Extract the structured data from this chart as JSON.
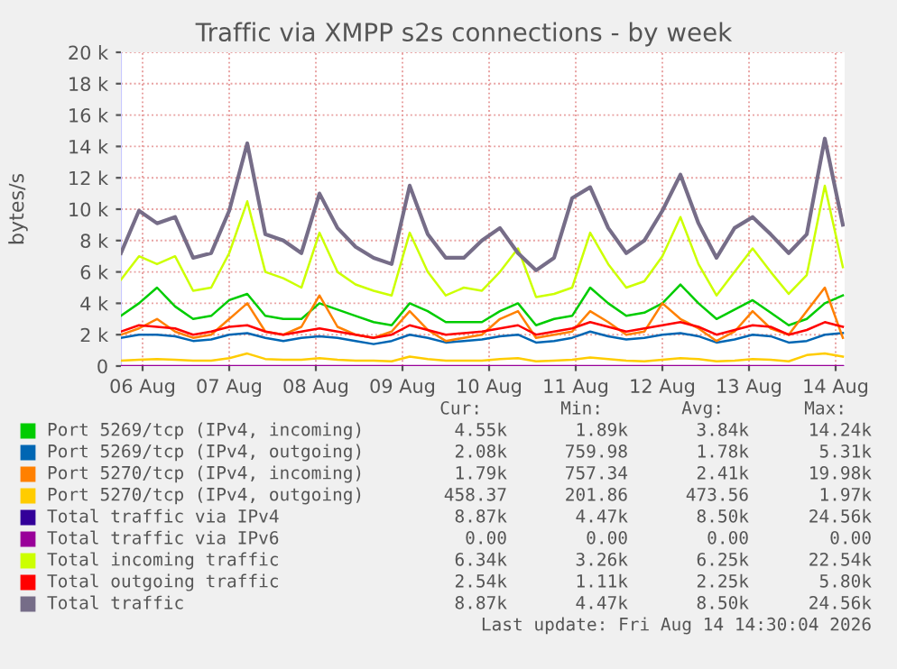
{
  "chart_data": {
    "type": "line",
    "title": "Traffic via XMPP s2s connections - by week",
    "ylabel": "bytes/s",
    "x": [
      "2026-08-06T06:00",
      "2026-08-06T11:00",
      "2026-08-06T16:00",
      "2026-08-06T21:00",
      "2026-08-07T02:00",
      "2026-08-07T07:00",
      "2026-08-07T12:00",
      "2026-08-07T17:00",
      "2026-08-07T22:00",
      "2026-08-08T03:00",
      "2026-08-08T08:00",
      "2026-08-08T13:00",
      "2026-08-08T18:00",
      "2026-08-08T23:00",
      "2026-08-09T04:00",
      "2026-08-09T09:00",
      "2026-08-09T14:00",
      "2026-08-09T19:00",
      "2026-08-10T00:00",
      "2026-08-10T05:00",
      "2026-08-10T10:00",
      "2026-08-10T15:00",
      "2026-08-10T20:00",
      "2026-08-11T01:00",
      "2026-08-11T06:00",
      "2026-08-11T11:00",
      "2026-08-11T16:00",
      "2026-08-11T21:00",
      "2026-08-12T02:00",
      "2026-08-12T07:00",
      "2026-08-12T12:00",
      "2026-08-12T17:00",
      "2026-08-12T22:00",
      "2026-08-13T03:00",
      "2026-08-13T08:00",
      "2026-08-13T13:00",
      "2026-08-13T18:00",
      "2026-08-13T23:00",
      "2026-08-14T04:00",
      "2026-08-14T09:00",
      "2026-08-14T14:00"
    ],
    "series": [
      {
        "name": "Port 5269/tcp (IPv4, incoming)",
        "color": "#00cc00",
        "values": [
          3200,
          4000,
          5000,
          3800,
          3000,
          3200,
          4200,
          4600,
          3200,
          3000,
          3000,
          4000,
          3600,
          3200,
          2800,
          2600,
          4000,
          3500,
          2800,
          2800,
          2800,
          3500,
          4000,
          2600,
          3000,
          3200,
          5000,
          4000,
          3200,
          3400,
          4000,
          5200,
          4000,
          3000,
          3600,
          4200,
          3400,
          2600,
          3000,
          4000,
          4500
        ]
      },
      {
        "name": "Port 5269/tcp (IPv4, outgoing)",
        "color": "#0066b3",
        "values": [
          1800,
          2000,
          2000,
          1900,
          1600,
          1700,
          2000,
          2100,
          1800,
          1600,
          1800,
          1900,
          1800,
          1600,
          1400,
          1600,
          2000,
          1800,
          1500,
          1600,
          1700,
          1900,
          2000,
          1500,
          1600,
          1800,
          2200,
          1900,
          1700,
          1800,
          2000,
          2100,
          1900,
          1500,
          1700,
          2000,
          1900,
          1500,
          1600,
          2000,
          2100
        ]
      },
      {
        "name": "Port 5270/tcp (IPv4, incoming)",
        "color": "#ff8000",
        "values": [
          2000,
          2400,
          3000,
          2200,
          1800,
          2000,
          3000,
          4000,
          2200,
          2000,
          2500,
          4500,
          2500,
          2000,
          1800,
          2200,
          3500,
          2300,
          1600,
          1800,
          2000,
          3000,
          3500,
          1800,
          2000,
          2200,
          3500,
          2800,
          2000,
          2200,
          4000,
          3000,
          2400,
          1600,
          2200,
          3500,
          2400,
          2000,
          3500,
          5000,
          1800
        ]
      },
      {
        "name": "Port 5270/tcp (IPv4, outgoing)",
        "color": "#ffcc00",
        "values": [
          350,
          400,
          450,
          400,
          350,
          350,
          500,
          800,
          450,
          400,
          400,
          500,
          400,
          350,
          350,
          300,
          600,
          450,
          350,
          350,
          350,
          450,
          500,
          300,
          350,
          400,
          550,
          450,
          350,
          300,
          400,
          500,
          450,
          300,
          350,
          450,
          400,
          300,
          700,
          800,
          600
        ]
      },
      {
        "name": "Total traffic via IPv4",
        "color": "#330099",
        "values": [
          null,
          null,
          null,
          null,
          null,
          null,
          null,
          null,
          null,
          null,
          null,
          null,
          null,
          null,
          null,
          null,
          null,
          null,
          null,
          null,
          null,
          null,
          null,
          null,
          null,
          null,
          null,
          null,
          null,
          null,
          null,
          null,
          null,
          null,
          null,
          null,
          null,
          null,
          null,
          null,
          null
        ]
      },
      {
        "name": "Total traffic via IPv6",
        "color": "#990099",
        "values": [
          0,
          0,
          0,
          0,
          0,
          0,
          0,
          0,
          0,
          0,
          0,
          0,
          0,
          0,
          0,
          0,
          0,
          0,
          0,
          0,
          0,
          0,
          0,
          0,
          0,
          0,
          0,
          0,
          0,
          0,
          0,
          0,
          0,
          0,
          0,
          0,
          0,
          0,
          0,
          0,
          0
        ]
      },
      {
        "name": "Total incoming traffic",
        "color": "#ccff00",
        "values": [
          5500,
          7000,
          6500,
          7000,
          4800,
          5000,
          7200,
          10500,
          6000,
          5600,
          5000,
          8500,
          6000,
          5200,
          4800,
          4500,
          8500,
          6000,
          4500,
          5000,
          4800,
          6000,
          7500,
          4400,
          4600,
          5000,
          8500,
          6500,
          5000,
          5400,
          7000,
          9500,
          6500,
          4500,
          6000,
          7500,
          6000,
          4600,
          5800,
          11500,
          6300
        ]
      },
      {
        "name": "Total outgoing traffic",
        "color": "#ff0000",
        "values": [
          2200,
          2600,
          2500,
          2400,
          2000,
          2200,
          2500,
          2600,
          2200,
          2000,
          2200,
          2400,
          2200,
          2000,
          1800,
          2000,
          2600,
          2300,
          2000,
          2100,
          2200,
          2400,
          2600,
          2000,
          2200,
          2400,
          2800,
          2500,
          2200,
          2400,
          2600,
          2800,
          2500,
          2000,
          2300,
          2600,
          2500,
          2000,
          2300,
          2800,
          2500
        ]
      },
      {
        "name": "Total traffic",
        "color": "#766d88",
        "values": [
          7200,
          9900,
          9100,
          9500,
          6900,
          7200,
          9900,
          14200,
          8400,
          8000,
          7200,
          11000,
          8800,
          7600,
          6900,
          6500,
          11500,
          8400,
          6900,
          6900,
          8000,
          8800,
          7200,
          6100,
          6900,
          10700,
          11400,
          8800,
          7200,
          8000,
          9900,
          12200,
          9100,
          6900,
          8800,
          9500,
          8400,
          7200,
          8400,
          14500,
          9000
        ]
      }
    ],
    "xlim": [
      "2026-08-06T06:00",
      "2026-08-14T14:30"
    ],
    "xticks": [
      {
        "value": "2026-08-06T12:00",
        "label": "06 Aug"
      },
      {
        "value": "2026-08-07T12:00",
        "label": "07 Aug"
      },
      {
        "value": "2026-08-08T12:00",
        "label": "08 Aug"
      },
      {
        "value": "2026-08-09T12:00",
        "label": "09 Aug"
      },
      {
        "value": "2026-08-10T12:00",
        "label": "10 Aug"
      },
      {
        "value": "2026-08-11T12:00",
        "label": "11 Aug"
      },
      {
        "value": "2026-08-12T12:00",
        "label": "12 Aug"
      },
      {
        "value": "2026-08-13T12:00",
        "label": "13 Aug"
      },
      {
        "value": "2026-08-14T12:00",
        "label": "14 Aug"
      }
    ],
    "ylim": [
      0,
      20000
    ],
    "yticks": [
      0,
      {
        "value": 2000,
        "label": "2 k"
      },
      {
        "value": 4000,
        "label": "4 k"
      },
      {
        "value": 6000,
        "label": "6 k"
      },
      {
        "value": 8000,
        "label": "8 k"
      },
      {
        "value": 10000,
        "label": "10 k"
      },
      {
        "value": 12000,
        "label": "12 k"
      },
      {
        "value": 14000,
        "label": "14 k"
      },
      {
        "value": 16000,
        "label": "16 k"
      },
      {
        "value": 18000,
        "label": "18 k"
      },
      {
        "value": 20000,
        "label": "20 k"
      }
    ],
    "grid": true,
    "legend": "bottom",
    "annotations": [
      "Cur:",
      "Min:",
      "Avg:",
      "Max:",
      "4.55k",
      "1.89k",
      "3.84k",
      "14.24k",
      "2.08k",
      "759.98",
      "1.78k",
      "5.31k",
      "1.79k",
      "757.34",
      "2.41k",
      "19.98k",
      "458.37",
      "201.86",
      "473.56",
      "1.97k",
      "8.87k",
      "4.47k",
      "8.50k",
      "24.56k",
      "0.00",
      "0.00",
      "0.00",
      "0.00",
      "6.34k",
      "3.26k",
      "6.25k",
      "22.54k",
      "2.54k",
      "1.11k",
      "2.25k",
      "5.80k",
      "8.87k",
      "4.47k",
      "8.50k",
      "24.56k",
      "Last update: Fri Aug 14 14:30:04 2026"
    ]
  }
}
